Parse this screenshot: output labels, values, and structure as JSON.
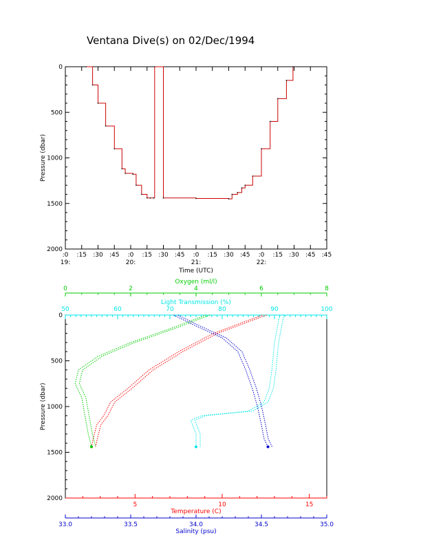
{
  "title": "Ventana Dive(s) on 02/Dec/1994",
  "colors": {
    "axes": "#000000",
    "depth_trace": "#cc0000",
    "temperature": "#ff0000",
    "oxygen": "#00cc00",
    "light_transmission": "#00e5e5",
    "salinity": "#0000cc"
  },
  "chart_data": [
    {
      "type": "line",
      "ylabel": "Pressure (dbar)",
      "xlabel": "Time (UTC)",
      "ylim": [
        2000,
        0
      ],
      "y_ticks": [
        "0",
        "500",
        "1000",
        "1500",
        "2000"
      ],
      "x_ticks": [
        ":0",
        ":15",
        ":30",
        ":45",
        ":0",
        ":15",
        ":30",
        ":45",
        ":0",
        ":15",
        ":30",
        ":45",
        ":0",
        ":15",
        ":30",
        ":45"
      ],
      "hour_labels": [
        "19:",
        "20:",
        "21:",
        "22:"
      ],
      "series": [
        {
          "x": [
            "19:19",
            "19:25",
            "19:30",
            "19:37",
            "19:45",
            "19:52",
            "19:55",
            "20:02",
            "20:05",
            "20:10",
            "20:15",
            "20:18",
            "20:21",
            "20:22",
            "20:30",
            "21:00",
            "21:30",
            "21:33",
            "21:38",
            "21:42",
            "21:45",
            "21:52",
            "22:00",
            "22:08",
            "22:15",
            "22:23",
            "22:29"
          ],
          "y": [
            0,
            200,
            400,
            650,
            900,
            1120,
            1170,
            1180,
            1300,
            1400,
            1440,
            1440,
            1440,
            0,
            1440,
            1445,
            1450,
            1400,
            1380,
            1330,
            1300,
            1200,
            900,
            600,
            350,
            150,
            0
          ]
        }
      ]
    },
    {
      "type": "line",
      "ylabel": "Pressure (dbar)",
      "ylim": [
        2000,
        0
      ],
      "y_ticks": [
        "0",
        "500",
        "1000",
        "1500",
        "2000"
      ],
      "axes": [
        {
          "label": "Oxygen (ml/l)",
          "position": "top",
          "range": [
            0,
            8
          ],
          "ticks": [
            "0",
            "2",
            "4",
            "6",
            "8"
          ]
        },
        {
          "label": "Light Transmission (%)",
          "position": "top",
          "range": [
            50,
            100
          ],
          "ticks": [
            "50",
            "60",
            "70",
            "80",
            "90",
            "100"
          ]
        },
        {
          "label": "Temperature (C)",
          "position": "bottom",
          "range": [
            1,
            16
          ],
          "ticks": [
            "5",
            "10",
            "15"
          ]
        },
        {
          "label": "Salinity (psu)",
          "position": "bottom",
          "range": [
            33.0,
            35.0
          ],
          "ticks": [
            "33.0",
            "33.5",
            "34.0",
            "34.5",
            "35.0"
          ]
        }
      ],
      "series": [
        {
          "name": "Temperature (C)",
          "x": [
            12.3,
            9.5,
            7.5,
            5.8,
            4.6,
            3.6,
            3.2,
            2.8,
            2.6,
            2.5
          ],
          "y": [
            0,
            200,
            400,
            600,
            800,
            950,
            1100,
            1200,
            1350,
            1440
          ]
        },
        {
          "name": "Oxygen (ml/l)",
          "x": [
            4.3,
            3.2,
            2.0,
            1.0,
            0.4,
            0.3,
            0.5,
            0.6,
            0.7,
            0.8
          ],
          "y": [
            0,
            150,
            300,
            450,
            600,
            750,
            900,
            1100,
            1300,
            1440
          ]
        },
        {
          "name": "Light Transmission (%)",
          "x": [
            91.0,
            90.0,
            89.5,
            89.0,
            88.0,
            85.0,
            76.0,
            74.0,
            75.0,
            75.0
          ],
          "y": [
            0,
            300,
            600,
            800,
            950,
            1050,
            1100,
            1150,
            1300,
            1440
          ]
        },
        {
          "name": "Salinity (psu)",
          "x": [
            33.83,
            33.97,
            34.2,
            34.32,
            34.38,
            34.43,
            34.47,
            34.5,
            34.52,
            34.55
          ],
          "y": [
            0,
            100,
            250,
            400,
            600,
            800,
            1000,
            1200,
            1350,
            1440
          ]
        }
      ]
    }
  ]
}
